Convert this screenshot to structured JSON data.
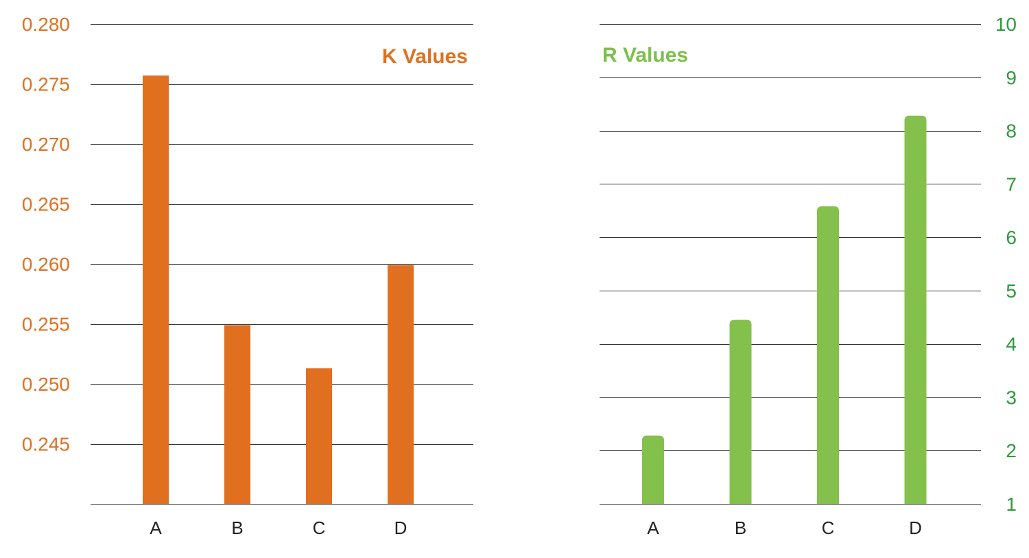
{
  "colors": {
    "k_bar": "#e07020",
    "k_text": "#e07020",
    "r_bar": "#84c04c",
    "r_title": "#7cc04a",
    "r_text": "#2e9a3a"
  },
  "chart_data": [
    {
      "type": "bar",
      "title": "K Values",
      "categories": [
        "A",
        "B",
        "C",
        "D"
      ],
      "values": [
        0.2757,
        0.2549,
        0.2513,
        0.2599
      ],
      "ylim": [
        0.24,
        0.28
      ],
      "yticks": [
        "0.280",
        "0.275",
        "0.270",
        "0.265",
        "0.260",
        "0.255",
        "0.250",
        "0.245"
      ],
      "ytick_values": [
        0.28,
        0.275,
        0.27,
        0.265,
        0.26,
        0.255,
        0.25,
        0.245
      ],
      "yaxis_side": "left",
      "grid": true,
      "legend": "none"
    },
    {
      "type": "bar",
      "title": "R Values",
      "categories": [
        "A",
        "B",
        "C",
        "D"
      ],
      "values": [
        2.28,
        4.45,
        6.58,
        8.28
      ],
      "ylim": [
        1,
        10
      ],
      "yticks": [
        "10",
        "9",
        "8",
        "7",
        "6",
        "5",
        "4",
        "3",
        "2",
        "1"
      ],
      "ytick_values": [
        10,
        9,
        8,
        7,
        6,
        5,
        4,
        3,
        2,
        1
      ],
      "yaxis_side": "right",
      "grid": true,
      "legend": "none"
    }
  ]
}
